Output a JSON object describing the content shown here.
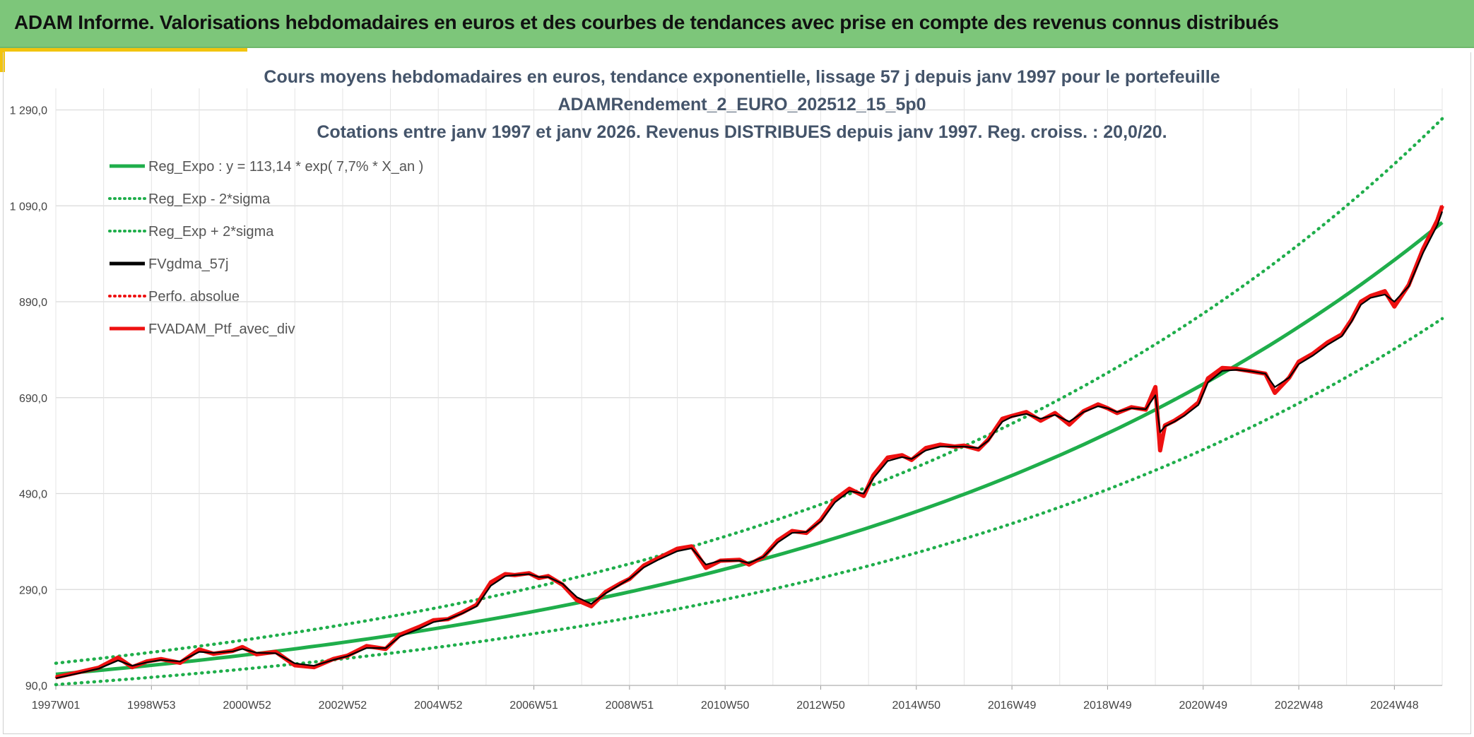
{
  "header": {
    "title": "ADAM Informe. Valorisations hebdomadaires en euros et des courbes de tendances avec prise en compte des revenus connus distribués"
  },
  "colors": {
    "banner": "#7dc67a",
    "accent": "#f2c40e",
    "trend_green": "#1fae4b",
    "black_series": "#000000",
    "red_series": "#ee1111",
    "title_text": "#44546a"
  },
  "chart_data": {
    "type": "line",
    "title_lines": [
      "Cours moyens hebdomadaires en euros, tendance exponentielle, lissage 57 j depuis janv 1997 pour le portefeuille",
      "ADAMRendement_2_EURO_202512_15_5p0",
      "Cotations entre janv 1997 et janv 2026. Revenus DISTRIBUES depuis janv 1997. Reg. croiss. : 20,0/20."
    ],
    "x_tick_labels": [
      "1997W01",
      "1998W53",
      "2000W52",
      "2002W52",
      "2004W52",
      "2006W51",
      "2008W51",
      "2010W50",
      "2012W50",
      "2014W50",
      "2016W49",
      "2018W49",
      "2020W49",
      "2022W48",
      "2024W48"
    ],
    "x_range": [
      1997.0,
      2026.0
    ],
    "y_ticks": [
      90,
      290,
      490,
      690,
      890,
      1090,
      1290
    ],
    "y_tick_labels": [
      "90,0",
      "290,0",
      "490,0",
      "690,0",
      "890,0",
      "1 090,0",
      "1 290,0"
    ],
    "ylim": [
      90,
      1335
    ],
    "grid": true,
    "legend_position": "top-left",
    "legend": [
      {
        "label": "Reg_Expo : y = 113,14 * exp( 7,7% *  X_an )",
        "color": "#1fae4b",
        "style": "solid"
      },
      {
        "label": "Reg_Exp - 2*sigma",
        "color": "#1fae4b",
        "style": "dotted"
      },
      {
        "label": "Reg_Exp + 2*sigma",
        "color": "#1fae4b",
        "style": "dotted"
      },
      {
        "label": "FVgdma_57j",
        "color": "#000000",
        "style": "solid"
      },
      {
        "label": "Perfo. absolue",
        "color": "#ee1111",
        "style": "dotted"
      },
      {
        "label": "FVADAM_Ptf_avec_div",
        "color": "#ee1111",
        "style": "solid"
      }
    ],
    "regression": {
      "a": 113.14,
      "rate": 0.077,
      "lower_factor": 0.81,
      "upper_factor": 1.205
    },
    "series": [
      {
        "name": "FVADAM_Ptf_avec_div",
        "x": [
          1997.0,
          1997.5,
          1997.9,
          1998.3,
          1998.6,
          1998.9,
          1999.2,
          1999.6,
          2000.0,
          2000.3,
          2000.7,
          2000.9,
          2001.2,
          2001.6,
          2002.0,
          2002.4,
          2002.8,
          2003.1,
          2003.5,
          2003.9,
          2004.2,
          2004.6,
          2004.9,
          2005.2,
          2005.5,
          2005.8,
          2006.1,
          2006.4,
          2006.6,
          2006.9,
          2007.1,
          2007.3,
          2007.6,
          2007.9,
          2008.2,
          2008.5,
          2008.8,
          2009.0,
          2009.3,
          2009.6,
          2010.0,
          2010.3,
          2010.6,
          2010.9,
          2011.3,
          2011.5,
          2011.8,
          2012.1,
          2012.4,
          2012.7,
          2013.0,
          2013.3,
          2013.6,
          2013.9,
          2014.1,
          2014.4,
          2014.7,
          2014.9,
          2015.2,
          2015.5,
          2015.8,
          2016.0,
          2016.3,
          2016.5,
          2016.8,
          2017.0,
          2017.3,
          2017.6,
          2017.9,
          2018.2,
          2018.5,
          2018.8,
          2019.0,
          2019.2,
          2019.5,
          2019.8,
          2020.0,
          2020.1,
          2020.2,
          2020.4,
          2020.6,
          2020.9,
          2021.1,
          2021.4,
          2021.7,
          2022.0,
          2022.3,
          2022.5,
          2022.8,
          2023.0,
          2023.3,
          2023.6,
          2023.9,
          2024.1,
          2024.3,
          2024.5,
          2024.8,
          2025.0,
          2025.3,
          2025.6,
          2025.9,
          2026.0
        ],
        "values": [
          107,
          118,
          127,
          148,
          128,
          140,
          145,
          137,
          165,
          156,
          162,
          170,
          155,
          160,
          132,
          128,
          145,
          152,
          172,
          166,
          196,
          212,
          226,
          228,
          242,
          258,
          305,
          322,
          320,
          324,
          314,
          318,
          300,
          268,
          255,
          285,
          302,
          312,
          340,
          355,
          375,
          380,
          335,
          350,
          352,
          342,
          358,
          392,
          412,
          408,
          435,
          478,
          500,
          485,
          528,
          565,
          570,
          560,
          585,
          592,
          588,
          590,
          582,
          602,
          646,
          652,
          660,
          642,
          658,
          634,
          662,
          676,
          668,
          658,
          670,
          665,
          712,
          580,
          632,
          642,
          655,
          680,
          730,
          752,
          750,
          745,
          740,
          700,
          732,
          765,
          782,
          805,
          822,
          852,
          890,
          902,
          912,
          880,
          925,
          1000,
          1060,
          1090
        ]
      },
      {
        "name": "FVgdma_57j",
        "x": [
          1997.0,
          1997.5,
          1997.9,
          1998.3,
          1998.6,
          1998.9,
          1999.2,
          1999.6,
          2000.0,
          2000.3,
          2000.7,
          2000.9,
          2001.2,
          2001.6,
          2002.0,
          2002.4,
          2002.8,
          2003.1,
          2003.5,
          2003.9,
          2004.2,
          2004.6,
          2004.9,
          2005.2,
          2005.5,
          2005.8,
          2006.1,
          2006.4,
          2006.6,
          2006.9,
          2007.1,
          2007.3,
          2007.6,
          2007.9,
          2008.2,
          2008.5,
          2008.8,
          2009.0,
          2009.3,
          2009.6,
          2010.0,
          2010.3,
          2010.6,
          2010.9,
          2011.3,
          2011.5,
          2011.8,
          2012.1,
          2012.4,
          2012.7,
          2013.0,
          2013.3,
          2013.6,
          2013.9,
          2014.1,
          2014.4,
          2014.7,
          2014.9,
          2015.2,
          2015.5,
          2015.8,
          2016.0,
          2016.3,
          2016.5,
          2016.8,
          2017.0,
          2017.3,
          2017.6,
          2017.9,
          2018.2,
          2018.5,
          2018.8,
          2019.0,
          2019.2,
          2019.5,
          2019.8,
          2020.0,
          2020.1,
          2020.2,
          2020.4,
          2020.6,
          2020.9,
          2021.1,
          2021.4,
          2021.7,
          2022.0,
          2022.3,
          2022.5,
          2022.8,
          2023.0,
          2023.3,
          2023.6,
          2023.9,
          2024.1,
          2024.3,
          2024.5,
          2024.8,
          2025.0,
          2025.3,
          2025.6,
          2025.9,
          2026.0
        ],
        "values": [
          105,
          116,
          125,
          142,
          131,
          138,
          143,
          140,
          160,
          158,
          161,
          166,
          158,
          157,
          136,
          131,
          143,
          151,
          168,
          168,
          192,
          208,
          222,
          228,
          240,
          255,
          298,
          318,
          320,
          322,
          316,
          316,
          302,
          274,
          260,
          282,
          300,
          312,
          336,
          352,
          370,
          376,
          342,
          350,
          350,
          345,
          358,
          388,
          408,
          410,
          432,
          472,
          495,
          490,
          522,
          558,
          566,
          562,
          580,
          588,
          588,
          588,
          585,
          600,
          640,
          650,
          656,
          646,
          654,
          640,
          660,
          672,
          668,
          660,
          668,
          666,
          695,
          618,
          630,
          640,
          652,
          675,
          722,
          746,
          748,
          745,
          740,
          712,
          732,
          760,
          778,
          800,
          818,
          848,
          884,
          898,
          905,
          890,
          922,
          992,
          1050,
          1078
        ]
      },
      {
        "name": "Perfo. absolue",
        "x": [
          1997.0,
          1997.5,
          1997.9,
          1998.3,
          1998.6,
          1998.9,
          1999.2,
          1999.6,
          2000.0,
          2000.3,
          2000.7,
          2000.9,
          2001.2,
          2001.6,
          2002.0,
          2002.4,
          2002.8,
          2003.1,
          2003.5,
          2003.9,
          2004.2,
          2004.6,
          2004.9,
          2005.2,
          2005.5,
          2005.8,
          2006.1,
          2006.4,
          2006.6,
          2006.9,
          2007.1,
          2007.3,
          2007.6,
          2007.9,
          2008.2,
          2008.5,
          2008.8,
          2009.0,
          2009.3,
          2009.6,
          2010.0,
          2010.3,
          2010.6,
          2010.9,
          2011.3,
          2011.5,
          2011.8,
          2012.1,
          2012.4,
          2012.7,
          2013.0,
          2013.3,
          2013.6,
          2013.9,
          2014.1,
          2014.4,
          2014.7,
          2014.9,
          2015.2,
          2015.5,
          2015.8,
          2016.0,
          2016.3,
          2016.5,
          2016.8,
          2017.0,
          2017.3,
          2017.6,
          2017.9,
          2018.2,
          2018.5,
          2018.8,
          2019.0,
          2019.2,
          2019.5,
          2019.8,
          2020.0,
          2020.1,
          2020.2,
          2020.4,
          2020.6,
          2020.9,
          2021.1,
          2021.4,
          2021.7,
          2022.0,
          2022.3,
          2022.5,
          2022.8,
          2023.0,
          2023.3,
          2023.6,
          2023.9,
          2024.1,
          2024.3,
          2024.5,
          2024.8,
          2025.0,
          2025.3,
          2025.6,
          2025.9,
          2026.0
        ],
        "values": [
          107,
          118,
          127,
          148,
          128,
          140,
          145,
          137,
          165,
          156,
          162,
          170,
          155,
          160,
          132,
          128,
          145,
          152,
          172,
          166,
          196,
          212,
          226,
          228,
          242,
          258,
          305,
          322,
          320,
          324,
          314,
          318,
          300,
          268,
          255,
          285,
          302,
          312,
          340,
          355,
          375,
          380,
          335,
          350,
          352,
          342,
          358,
          392,
          412,
          408,
          435,
          478,
          500,
          485,
          528,
          565,
          570,
          560,
          585,
          592,
          588,
          590,
          582,
          602,
          646,
          652,
          660,
          642,
          658,
          634,
          662,
          676,
          668,
          658,
          670,
          665,
          712,
          580,
          632,
          642,
          655,
          680,
          730,
          752,
          750,
          745,
          740,
          700,
          732,
          765,
          782,
          805,
          822,
          852,
          890,
          902,
          912,
          880,
          925,
          1000,
          1060,
          1090
        ]
      }
    ]
  }
}
